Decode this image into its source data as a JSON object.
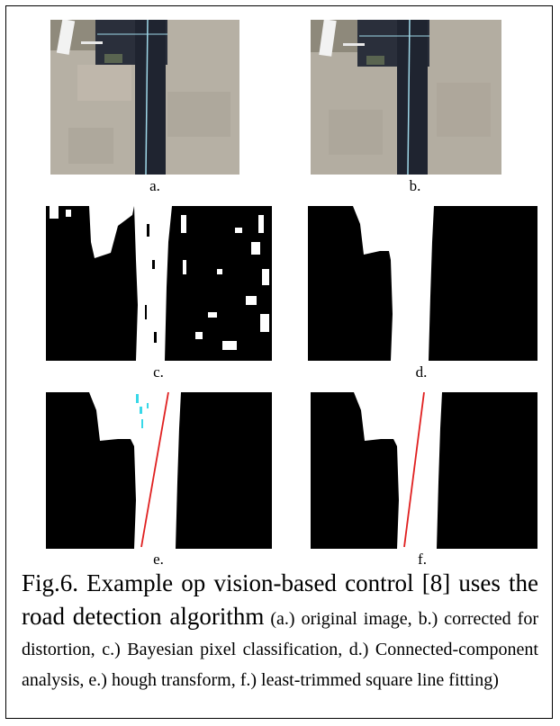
{
  "figure": {
    "panels": [
      {
        "id": "a",
        "label": "a.",
        "kind": "aerial-photo"
      },
      {
        "id": "b",
        "label": "b.",
        "kind": "aerial-photo-corrected"
      },
      {
        "id": "c",
        "label": "c.",
        "kind": "bayesian-classification-mask"
      },
      {
        "id": "d",
        "label": "d.",
        "kind": "connected-component-mask"
      },
      {
        "id": "e",
        "label": "e.",
        "kind": "hough-transform-mask"
      },
      {
        "id": "f",
        "label": "f.",
        "kind": "line-fitting-mask"
      }
    ],
    "caption": {
      "lead": "Fig.6. Example op vision-based control [8] uses the road detection algorithm",
      "detail": " (a.) original image, b.) corrected for distortion, c.) Bayesian pixel classification, d.) Connected-component analysis, e.) hough transform, f.) least-trimmed square line fitting)"
    }
  },
  "colors": {
    "border": "#000000",
    "mask_foreground": "#ffffff",
    "mask_background": "#000000",
    "fit_line": "#e02020",
    "hough_points": "#38d8e8",
    "ground": "#b8b2a6",
    "road": "#1f2430"
  }
}
